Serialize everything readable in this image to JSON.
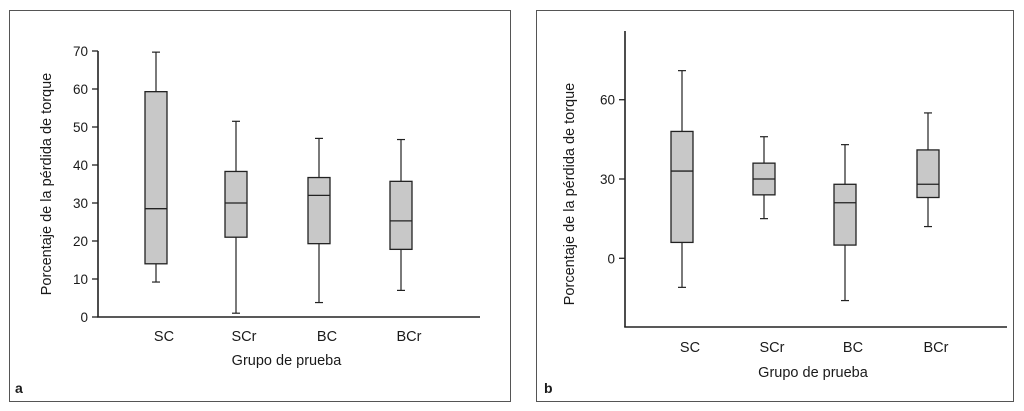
{
  "chart_data": [
    {
      "type": "box",
      "panel_label": "a",
      "xlabel": "Grupo de prueba",
      "ylabel": "Porcentaje de la pérdida de torque",
      "ylim": [
        0,
        70
      ],
      "yticks": [
        0,
        10,
        20,
        30,
        40,
        50,
        60,
        70
      ],
      "categories": [
        "SC",
        "SCr",
        "BC",
        "BCr"
      ],
      "series": [
        {
          "category": "SC",
          "min": 9.2,
          "q1": 14,
          "median": 28.5,
          "q3": 59.3,
          "max": 69.7
        },
        {
          "category": "SCr",
          "min": 1,
          "q1": 21,
          "median": 30,
          "q3": 38.3,
          "max": 51.5
        },
        {
          "category": "BC",
          "min": 3.8,
          "q1": 19.3,
          "median": 32,
          "q3": 36.7,
          "max": 47
        },
        {
          "category": "BCr",
          "min": 7,
          "q1": 17.8,
          "median": 25.3,
          "q3": 35.7,
          "max": 46.7
        }
      ],
      "grid": false,
      "box_fill": "#c8c8c8"
    },
    {
      "type": "box",
      "panel_label": "b",
      "xlabel": "Grupo de prueba",
      "ylabel": "Porcentaje de la pérdida de torque",
      "ylim": [
        -26,
        86
      ],
      "yticks": [
        0,
        30,
        60
      ],
      "categories": [
        "SC",
        "SCr",
        "BC",
        "BCr"
      ],
      "series": [
        {
          "category": "SC",
          "min": -11,
          "q1": 6,
          "median": 33,
          "q3": 48,
          "max": 71
        },
        {
          "category": "SCr",
          "min": 15,
          "q1": 24,
          "median": 30,
          "q3": 36,
          "max": 46
        },
        {
          "category": "BC",
          "min": -16,
          "q1": 5,
          "median": 21,
          "q3": 28,
          "max": 43
        },
        {
          "category": "BCr",
          "min": 12,
          "q1": 23,
          "median": 28,
          "q3": 41,
          "max": 55
        }
      ],
      "grid": false,
      "box_fill": "#c8c8c8"
    }
  ]
}
